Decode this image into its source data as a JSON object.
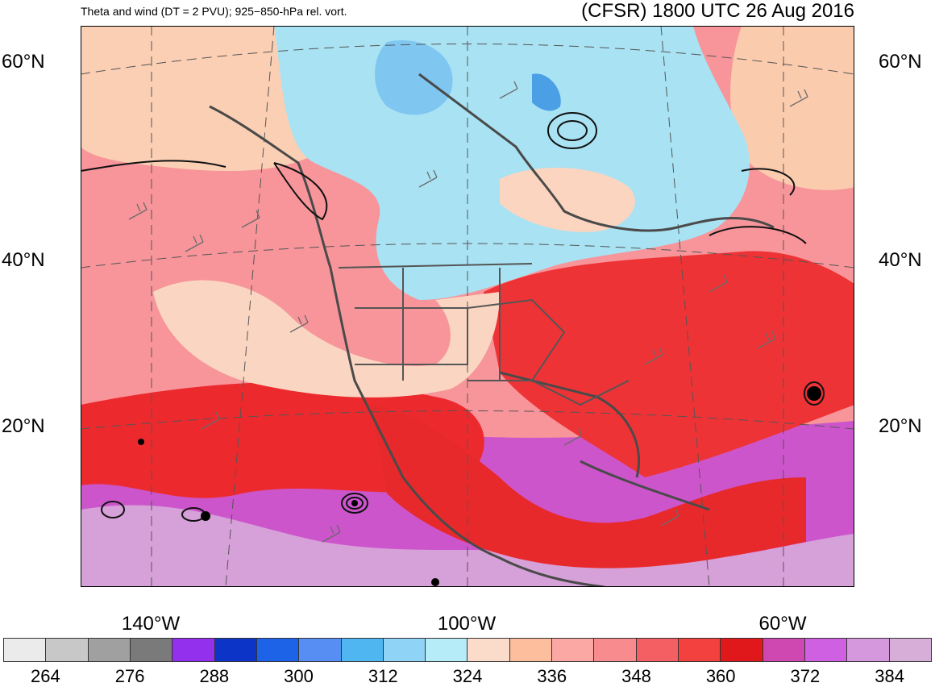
{
  "header": {
    "title_left": "Theta and wind (DT = 2 PVU); 925−850-hPa rel. vort.",
    "title_right": "(CFSR) 1800 UTC 26 Aug 2016"
  },
  "axes": {
    "lat_labels": [
      "60°N",
      "40°N",
      "20°N"
    ],
    "lon_labels": [
      "140°W",
      "100°W",
      "60°W"
    ]
  },
  "colorbar": {
    "colors": [
      "#ebebeb",
      "#c8c8c8",
      "#a0a0a0",
      "#7a7a7a",
      "#9230ee",
      "#0c35c7",
      "#1d63e8",
      "#568ef4",
      "#4fb6f2",
      "#8fd3f6",
      "#b6ecf7",
      "#fbdcca",
      "#fcbe9c",
      "#fba8a4",
      "#f78b8e",
      "#f35f63",
      "#f2413f",
      "#e0181b",
      "#cf47b1",
      "#d060e2",
      "#d598dd",
      "#d7aed7"
    ],
    "labels": [
      "264",
      "276",
      "288",
      "300",
      "312",
      "324",
      "336",
      "348",
      "360",
      "372",
      "384"
    ]
  }
}
